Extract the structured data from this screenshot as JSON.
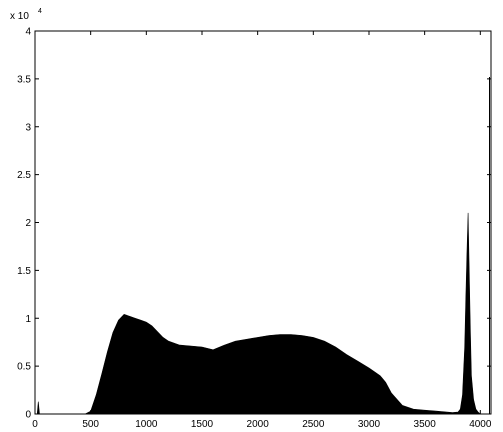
{
  "chart_data": {
    "type": "area",
    "title": "",
    "xlabel": "",
    "ylabel": "",
    "xlim": [
      0,
      4096
    ],
    "ylim": [
      0,
      4
    ],
    "y_exponent_label": {
      "base": "x 10",
      "exp": "4"
    },
    "grid": false,
    "legend": "none",
    "x_ticks": [
      {
        "value": 0,
        "label": "0"
      },
      {
        "value": 500,
        "label": "500"
      },
      {
        "value": 1000,
        "label": "1000"
      },
      {
        "value": 1500,
        "label": "1500"
      },
      {
        "value": 2000,
        "label": "2000"
      },
      {
        "value": 2500,
        "label": "2500"
      },
      {
        "value": 3000,
        "label": "3000"
      },
      {
        "value": 3500,
        "label": "3500"
      },
      {
        "value": 4000,
        "label": "4000"
      }
    ],
    "y_ticks": [
      {
        "value": 0,
        "label": "0"
      },
      {
        "value": 0.5,
        "label": "0.5"
      },
      {
        "value": 1,
        "label": "1"
      },
      {
        "value": 1.5,
        "label": "1.5"
      },
      {
        "value": 2,
        "label": "2"
      },
      {
        "value": 2.5,
        "label": "2.5"
      },
      {
        "value": 3,
        "label": "3"
      },
      {
        "value": 3.5,
        "label": "3.5"
      },
      {
        "value": 4,
        "label": "4"
      }
    ],
    "series": [
      {
        "values_note_units": "y in units of 1e4 counts",
        "x": [
          0,
          20,
          30,
          40,
          60,
          100,
          450,
          500,
          550,
          600,
          650,
          700,
          750,
          800,
          850,
          900,
          950,
          1000,
          1050,
          1100,
          1150,
          1200,
          1300,
          1400,
          1500,
          1600,
          1700,
          1800,
          1900,
          2000,
          2100,
          2200,
          2300,
          2400,
          2500,
          2600,
          2700,
          2800,
          2900,
          3000,
          3050,
          3100,
          3150,
          3200,
          3300,
          3400,
          3500,
          3600,
          3700,
          3750,
          3800,
          3820,
          3840,
          3860,
          3870,
          3880,
          3890,
          3900,
          3910,
          3920,
          3940,
          3960,
          3980,
          4000,
          4096
        ],
        "y": [
          0,
          0,
          0.13,
          0,
          0,
          0,
          0,
          0.03,
          0.2,
          0.42,
          0.65,
          0.85,
          0.98,
          1.04,
          1.02,
          1.0,
          0.98,
          0.96,
          0.92,
          0.86,
          0.8,
          0.76,
          0.72,
          0.71,
          0.7,
          0.67,
          0.72,
          0.76,
          0.78,
          0.8,
          0.82,
          0.83,
          0.83,
          0.82,
          0.8,
          0.76,
          0.7,
          0.62,
          0.55,
          0.48,
          0.44,
          0.4,
          0.33,
          0.22,
          0.09,
          0.05,
          0.04,
          0.03,
          0.02,
          0.015,
          0.02,
          0.05,
          0.2,
          0.7,
          1.2,
          1.7,
          2.1,
          1.5,
          0.9,
          0.4,
          0.15,
          0.05,
          0.02,
          0,
          0
        ],
        "fill": "#000000"
      }
    ],
    "right_edge_line": {
      "x": 4096,
      "y_top": 3.52
    }
  }
}
